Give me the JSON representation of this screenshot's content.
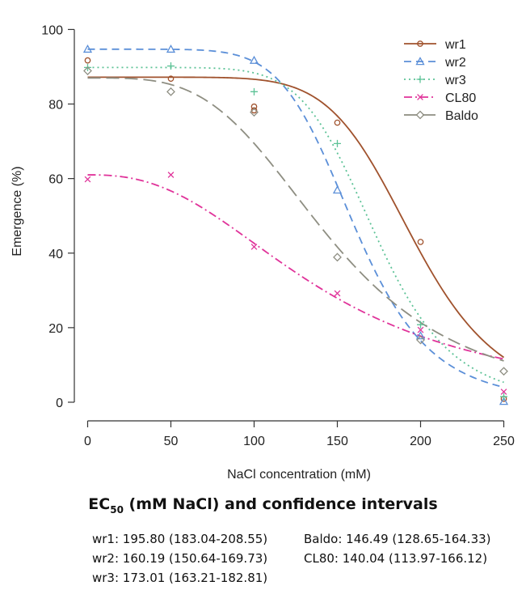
{
  "chart_data": {
    "type": "line",
    "title": "",
    "xlabel": "NaCl concentration (mM)",
    "ylabel": "Emergence (%)",
    "xlim": [
      -8,
      258
    ],
    "ylim": [
      -5,
      104
    ],
    "x_ticks": [
      0,
      50,
      100,
      150,
      200,
      250
    ],
    "y_ticks": [
      0,
      20,
      40,
      60,
      80,
      100
    ],
    "grid": false,
    "legend_position": "top-right",
    "series": [
      {
        "name": "wr1",
        "color": "#a0522d",
        "line_style": "solid",
        "marker": "circle",
        "points": [
          [
            0,
            91.7
          ],
          [
            50,
            86.8
          ],
          [
            100,
            78.3
          ],
          [
            100,
            79.3
          ],
          [
            150,
            75.0
          ],
          [
            200,
            43.0
          ],
          [
            250,
            0.9
          ]
        ],
        "curve": {
          "upper": 87.2,
          "lower": 0,
          "ec50": 195.8,
          "slope": 7.5
        }
      },
      {
        "name": "wr2",
        "color": "#5b8fd8",
        "line_style": "dashed",
        "marker": "triangle",
        "points": [
          [
            0,
            94.7
          ],
          [
            50,
            94.7
          ],
          [
            100,
            91.7
          ],
          [
            150,
            56.9
          ],
          [
            200,
            17.8
          ],
          [
            250,
            0.2
          ]
        ],
        "curve": {
          "upper": 94.7,
          "lower": 0,
          "ec50": 160.19,
          "slope": 7.0
        }
      },
      {
        "name": "wr3",
        "color": "#5cc296",
        "line_style": "dotted",
        "marker": "plus",
        "points": [
          [
            0,
            89.8
          ],
          [
            50,
            90.2
          ],
          [
            100,
            83.3
          ],
          [
            150,
            69.4
          ],
          [
            200,
            20.8
          ],
          [
            250,
            1.5
          ]
        ],
        "curve": {
          "upper": 89.8,
          "lower": 0,
          "ec50": 173.01,
          "slope": 7.5
        }
      },
      {
        "name": "CL80",
        "color": "#e0339a",
        "line_style": "dash-dot",
        "marker": "x",
        "points": [
          [
            0,
            59.8
          ],
          [
            50,
            61.0
          ],
          [
            100,
            41.7
          ],
          [
            150,
            29.2
          ],
          [
            200,
            19.4
          ],
          [
            250,
            2.8
          ]
        ],
        "curve": {
          "upper": 61.0,
          "lower": 0,
          "ec50": 140.04,
          "slope": 2.5
        }
      },
      {
        "name": "Baldo",
        "color": "#8e8e82",
        "line_style": "long-dash",
        "marker": "diamond",
        "points": [
          [
            0,
            88.9
          ],
          [
            50,
            83.3
          ],
          [
            100,
            77.8
          ],
          [
            150,
            38.9
          ],
          [
            200,
            16.7
          ],
          [
            250,
            8.3
          ]
        ],
        "curve": {
          "upper": 87.0,
          "lower": 0,
          "ec50": 146.49,
          "slope": 3.6
        }
      }
    ]
  },
  "ec50": {
    "title_prefix": "EC",
    "title_sub": "50",
    "title_suffix": " (mM NaCl) and confidence intervals",
    "entries": [
      {
        "text": "wr1: 195.80 (183.04-208.55)"
      },
      {
        "text": "wr2: 160.19 (150.64-169.73)"
      },
      {
        "text": "wr3: 173.01 (163.21-182.81)"
      },
      {
        "text": "Baldo: 146.49 (128.65-164.33)"
      },
      {
        "text": "CL80: 140.04 (113.97-166.12)"
      }
    ]
  }
}
